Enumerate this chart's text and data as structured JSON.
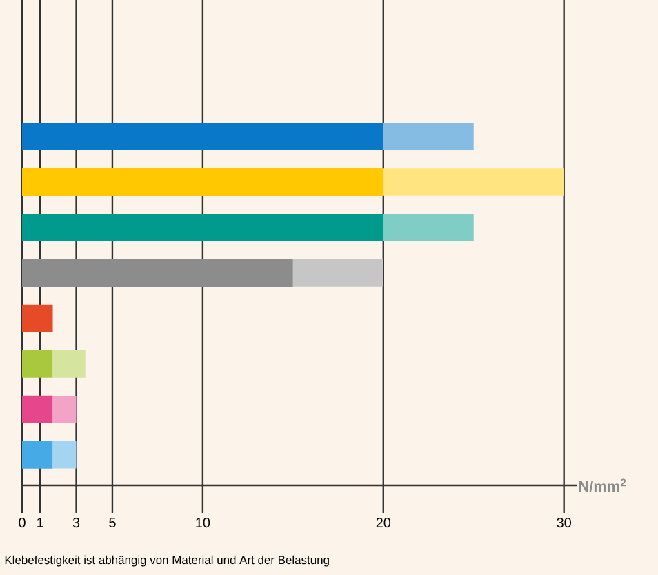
{
  "chart_data": {
    "type": "bar",
    "orientation": "horizontal",
    "stacked": true,
    "xlabel": "N/mm$^{2}$",
    "annotations": [
      "Klebefestigkeit ist abhängig von Material und Art der Belastung"
    ],
    "categories": [
      null,
      null,
      null,
      null,
      null,
      null,
      null,
      null
    ],
    "series": [
      {
        "colors": [
          "#0a78c8",
          "#ffc800",
          "#009b8c",
          "#8c8c8c",
          "#e64b28",
          "#aac83c",
          "#e6468c",
          "#46aae6"
        ],
        "values": [
          20,
          20,
          20,
          15,
          1.7,
          1.7,
          1.7,
          1.7
        ]
      },
      {
        "colors": [
          "#84bce4",
          "#ffe480",
          "#80cdc6",
          "#c6c6c6",
          "#f2a594",
          "#d5e49e",
          "#f3a3c6",
          "#a3d5f3"
        ],
        "values": [
          5,
          10,
          5,
          5,
          null,
          1.8,
          1.3,
          1.3
        ]
      }
    ],
    "xlim": [
      0,
      30.7
    ],
    "xticks": [
      0,
      1,
      3,
      5,
      10,
      20,
      30
    ],
    "grid": "x",
    "tick_labels": "x"
  }
}
